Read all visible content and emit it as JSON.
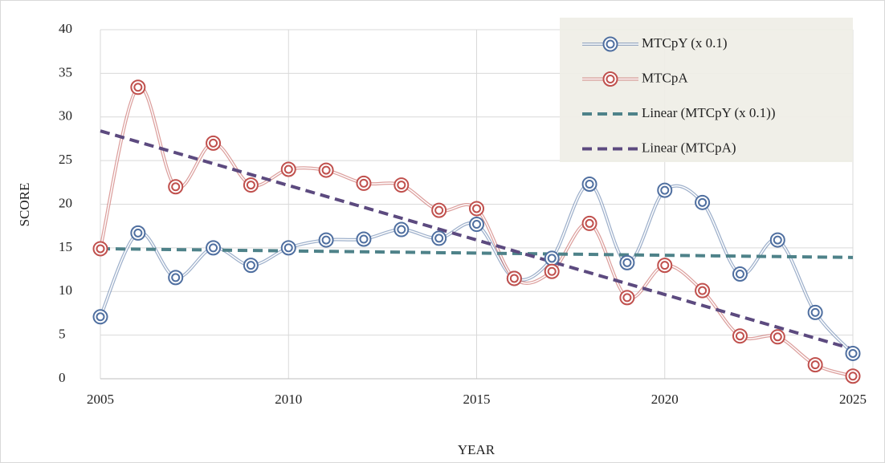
{
  "chart_data": {
    "type": "line",
    "x_label": "YEAR",
    "y_label": "SCORE",
    "x": [
      2005,
      2006,
      2007,
      2008,
      2009,
      2010,
      2011,
      2012,
      2013,
      2014,
      2015,
      2016,
      2017,
      2018,
      2019,
      2020,
      2021,
      2022,
      2023,
      2024,
      2025
    ],
    "series": [
      {
        "name": "MTCpY (x 0.1)",
        "color": "#4f6fa0",
        "values": [
          7.1,
          16.7,
          11.6,
          15.0,
          13.0,
          15.0,
          15.9,
          16.0,
          17.1,
          16.1,
          17.7,
          11.5,
          13.8,
          22.3,
          13.3,
          21.6,
          20.2,
          12.0,
          15.9,
          7.6,
          2.9
        ]
      },
      {
        "name": "MTCpA",
        "color": "#c0504d",
        "values": [
          14.9,
          33.4,
          22.0,
          27.0,
          22.2,
          24.0,
          23.9,
          22.4,
          22.2,
          19.3,
          19.5,
          11.5,
          12.3,
          17.8,
          9.3,
          13.0,
          10.1,
          4.9,
          4.8,
          1.6,
          0.3
        ]
      }
    ],
    "trendlines": [
      {
        "name": "Linear (MTCpY (x 0.1))",
        "color": "#4e8289",
        "x": [
          2005,
          2025
        ],
        "values": [
          14.9,
          13.9
        ]
      },
      {
        "name": "Linear (MTCpA)",
        "color": "#5c4a7f",
        "x": [
          2005,
          2025
        ],
        "values": [
          28.4,
          3.4
        ]
      }
    ],
    "xlim": [
      2005,
      2025
    ],
    "xticks": [
      2005,
      2010,
      2015,
      2020,
      2025
    ],
    "ylim": [
      0,
      40
    ],
    "yticks": [
      0,
      5,
      10,
      15,
      20,
      25,
      30,
      35,
      40
    ],
    "grid": true,
    "legend": "top-right"
  }
}
